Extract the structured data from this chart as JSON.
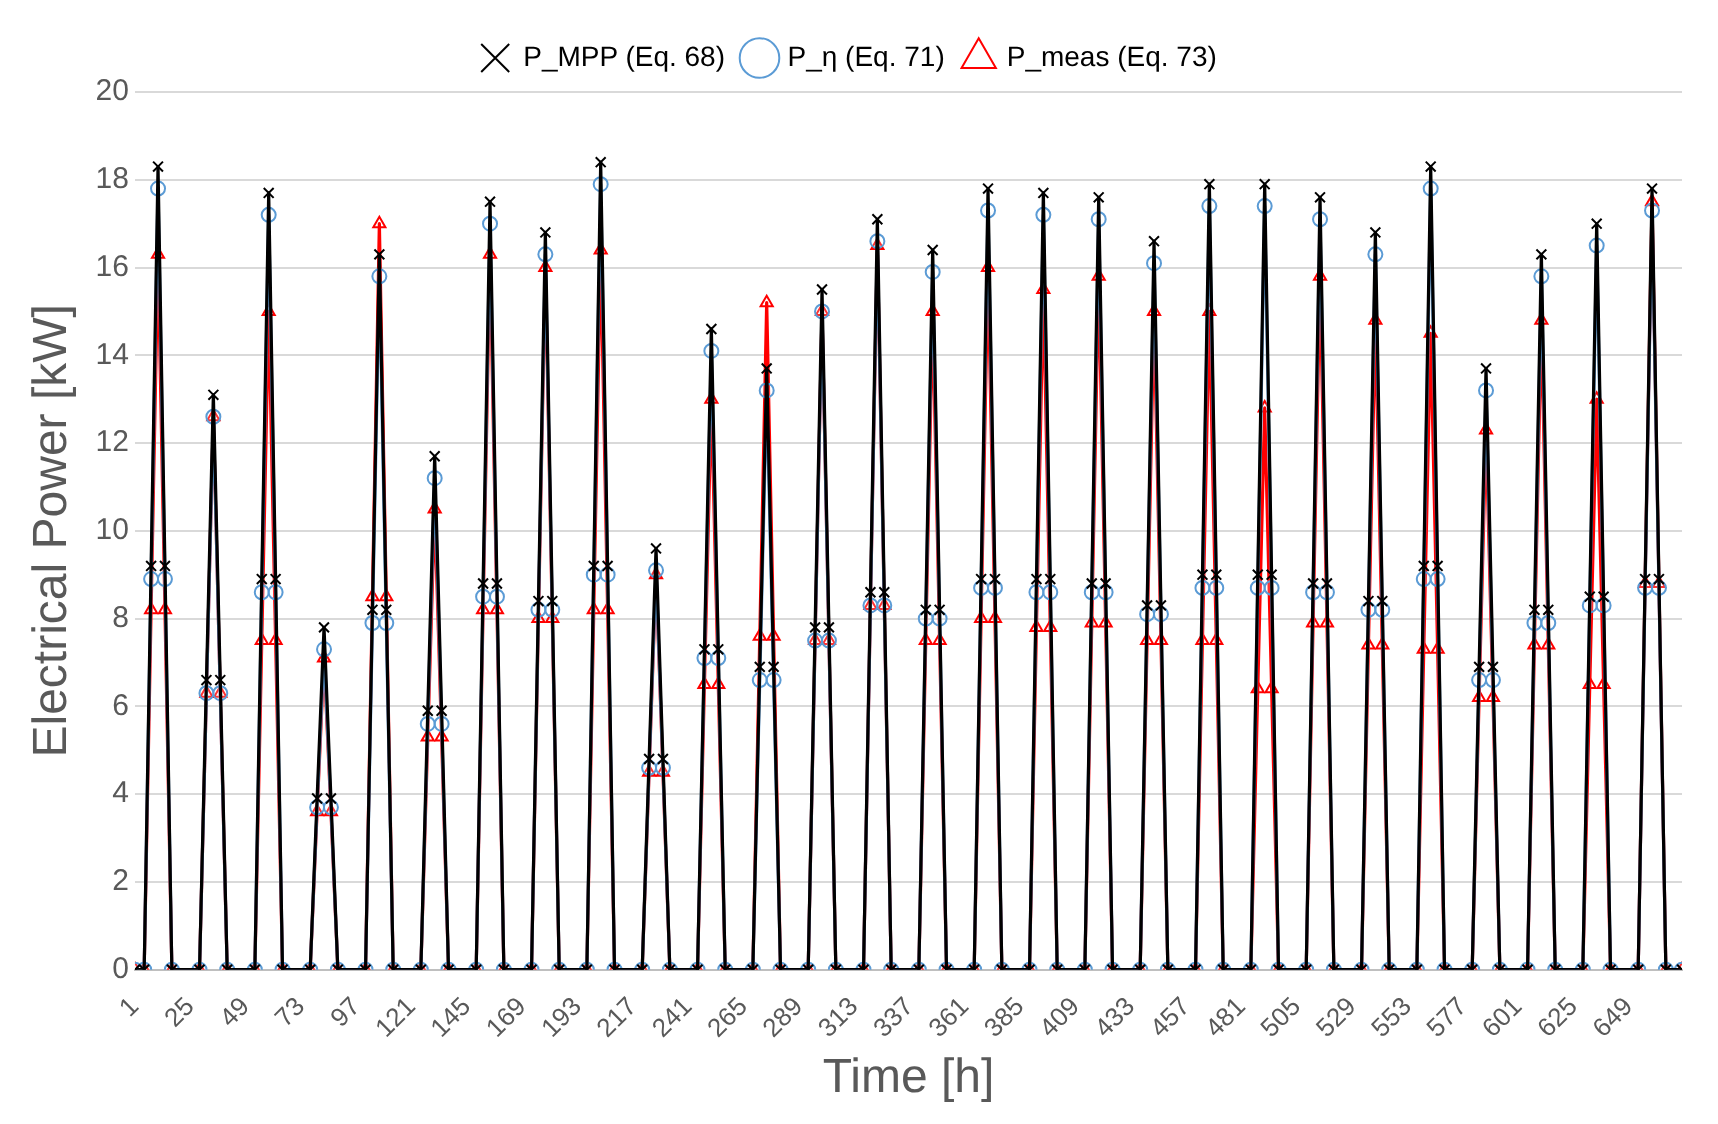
{
  "chart_data": {
    "type": "line",
    "xlabel": "Time [h]",
    "ylabel": "Electrical Power [kW]",
    "x": [
      1,
      5,
      8,
      11,
      14,
      17,
      29,
      32,
      35,
      38,
      41,
      53,
      56,
      59,
      62,
      65,
      77,
      80,
      83,
      86,
      89,
      101,
      104,
      107,
      110,
      113,
      125,
      128,
      131,
      134,
      137,
      149,
      152,
      155,
      158,
      161,
      173,
      176,
      179,
      182,
      185,
      197,
      200,
      203,
      206,
      209,
      221,
      224,
      227,
      230,
      233,
      245,
      248,
      251,
      254,
      257,
      269,
      272,
      275,
      278,
      281,
      293,
      296,
      299,
      302,
      305,
      317,
      320,
      323,
      326,
      329,
      341,
      344,
      347,
      350,
      353,
      365,
      368,
      371,
      374,
      377,
      389,
      392,
      395,
      398,
      401,
      413,
      416,
      419,
      422,
      425,
      437,
      440,
      443,
      446,
      449,
      461,
      464,
      467,
      470,
      473,
      485,
      488,
      491,
      494,
      497,
      509,
      512,
      515,
      518,
      521,
      533,
      536,
      539,
      542,
      545,
      557,
      560,
      563,
      566,
      569,
      581,
      584,
      587,
      590,
      593,
      605,
      608,
      611,
      614,
      617,
      629,
      632,
      635,
      638,
      641,
      653,
      656,
      659,
      662,
      665,
      672
    ],
    "xlim": [
      1,
      672
    ],
    "xticks": [
      1,
      25,
      49,
      73,
      97,
      121,
      145,
      169,
      193,
      217,
      241,
      265,
      289,
      313,
      337,
      361,
      385,
      409,
      433,
      457,
      481,
      505,
      529,
      553,
      577,
      601,
      625,
      649
    ],
    "ylim": [
      0,
      20
    ],
    "yticks": [
      0,
      2,
      4,
      6,
      8,
      10,
      12,
      14,
      16,
      18,
      20
    ],
    "grid": "y",
    "legend": "top",
    "line_style": "solid",
    "series": [
      {
        "name": "P_MPP (Eq. 68)",
        "color": "#000000",
        "marker": "cross",
        "values": [
          0,
          0,
          9.2,
          18.3,
          9.2,
          0,
          0,
          6.6,
          13.1,
          6.6,
          0,
          0,
          8.9,
          17.7,
          8.9,
          0,
          0,
          3.9,
          7.8,
          3.9,
          0,
          0,
          8.2,
          16.3,
          8.2,
          0,
          0,
          5.9,
          11.7,
          5.9,
          0,
          0,
          8.8,
          17.5,
          8.8,
          0,
          0,
          8.4,
          16.8,
          8.4,
          0,
          0,
          9.2,
          18.4,
          9.2,
          0,
          0,
          4.8,
          9.6,
          4.8,
          0,
          0,
          7.3,
          14.6,
          7.3,
          0,
          0,
          6.9,
          13.7,
          6.9,
          0,
          0,
          7.8,
          15.5,
          7.8,
          0,
          0,
          8.6,
          17.1,
          8.6,
          0,
          0,
          8.2,
          16.4,
          8.2,
          0,
          0,
          8.9,
          17.8,
          8.9,
          0,
          0,
          8.9,
          17.7,
          8.9,
          0,
          0,
          8.8,
          17.6,
          8.8,
          0,
          0,
          8.3,
          16.6,
          8.3,
          0,
          0,
          9.0,
          17.9,
          9.0,
          0,
          0,
          9.0,
          17.9,
          9.0,
          0,
          0,
          8.8,
          17.6,
          8.8,
          0,
          0,
          8.4,
          16.8,
          8.4,
          0,
          0,
          9.2,
          18.3,
          9.2,
          0,
          0,
          6.9,
          13.7,
          6.9,
          0,
          0,
          8.2,
          16.3,
          8.2,
          0,
          0,
          8.5,
          17.0,
          8.5,
          0,
          0,
          8.9,
          17.8,
          8.9,
          0,
          0
        ]
      },
      {
        "name": "P_η (Eq. 71)",
        "color": "#5b9bd5",
        "marker": "circle",
        "values": [
          0,
          0,
          8.9,
          17.8,
          8.9,
          0,
          0,
          6.3,
          12.6,
          6.3,
          0,
          0,
          8.6,
          17.2,
          8.6,
          0,
          0,
          3.7,
          7.3,
          3.7,
          0,
          0,
          7.9,
          15.8,
          7.9,
          0,
          0,
          5.6,
          11.2,
          5.6,
          0,
          0,
          8.5,
          17.0,
          8.5,
          0,
          0,
          8.2,
          16.3,
          8.2,
          0,
          0,
          9.0,
          17.9,
          9.0,
          0,
          0,
          4.6,
          9.1,
          4.6,
          0,
          0,
          7.1,
          14.1,
          7.1,
          0,
          0,
          6.6,
          13.2,
          6.6,
          0,
          0,
          7.5,
          15.0,
          7.5,
          0,
          0,
          8.3,
          16.6,
          8.3,
          0,
          0,
          8.0,
          15.9,
          8.0,
          0,
          0,
          8.7,
          17.3,
          8.7,
          0,
          0,
          8.6,
          17.2,
          8.6,
          0,
          0,
          8.6,
          17.1,
          8.6,
          0,
          0,
          8.1,
          16.1,
          8.1,
          0,
          0,
          8.7,
          17.4,
          8.7,
          0,
          0,
          8.7,
          17.4,
          8.7,
          0,
          0,
          8.6,
          17.1,
          8.6,
          0,
          0,
          8.2,
          16.3,
          8.2,
          0,
          0,
          8.9,
          17.8,
          8.9,
          0,
          0,
          6.6,
          13.2,
          6.6,
          0,
          0,
          7.9,
          15.8,
          7.9,
          0,
          0,
          8.3,
          16.5,
          8.3,
          0,
          0,
          8.7,
          17.3,
          8.7,
          0,
          0
        ]
      },
      {
        "name": "P_meas (Eq. 73)",
        "color": "#ff0000",
        "marker": "triangle",
        "values": [
          0,
          0,
          8.2,
          16.3,
          8.2,
          0,
          0,
          6.3,
          12.6,
          6.3,
          0,
          0,
          7.5,
          15.0,
          7.5,
          0,
          0,
          3.6,
          7.1,
          3.6,
          0,
          0,
          8.5,
          17.0,
          8.5,
          0,
          0,
          5.3,
          10.5,
          5.3,
          0,
          0,
          8.2,
          16.3,
          8.2,
          0,
          0,
          8.0,
          16.0,
          8.0,
          0,
          0,
          8.2,
          16.4,
          8.2,
          0,
          0,
          4.5,
          9.0,
          4.5,
          0,
          0,
          6.5,
          13.0,
          6.5,
          0,
          0,
          7.6,
          15.2,
          7.6,
          0,
          0,
          7.5,
          15.0,
          7.5,
          0,
          0,
          8.3,
          16.5,
          8.3,
          0,
          0,
          7.5,
          15.0,
          7.5,
          0,
          0,
          8.0,
          16.0,
          8.0,
          0,
          0,
          7.8,
          15.5,
          7.8,
          0,
          0,
          7.9,
          15.8,
          7.9,
          0,
          0,
          7.5,
          15.0,
          7.5,
          0,
          0,
          7.5,
          15.0,
          7.5,
          0,
          0,
          6.4,
          12.8,
          6.4,
          0,
          0,
          7.9,
          15.8,
          7.9,
          0,
          0,
          7.4,
          14.8,
          7.4,
          0,
          0,
          7.3,
          14.5,
          7.3,
          0,
          0,
          6.2,
          12.3,
          6.2,
          0,
          0,
          7.4,
          14.8,
          7.4,
          0,
          0,
          6.5,
          13.0,
          6.5,
          0,
          0,
          8.8,
          17.5,
          8.8,
          0,
          0
        ]
      }
    ]
  }
}
